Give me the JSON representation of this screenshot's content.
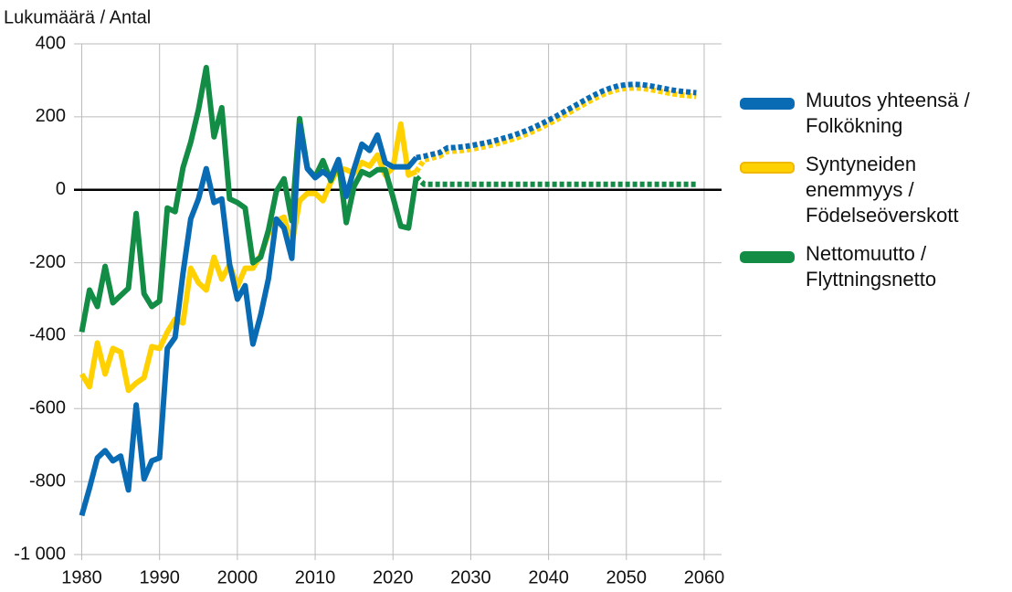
{
  "chart_data": {
    "type": "line",
    "title": "Lukumäärä / Antal",
    "x": [
      1980,
      1981,
      1982,
      1983,
      1984,
      1985,
      1986,
      1987,
      1988,
      1989,
      1990,
      1991,
      1992,
      1993,
      1994,
      1995,
      1996,
      1997,
      1998,
      1999,
      2000,
      2001,
      2002,
      2003,
      2004,
      2005,
      2006,
      2007,
      2008,
      2009,
      2010,
      2011,
      2012,
      2013,
      2014,
      2015,
      2016,
      2017,
      2018,
      2019,
      2020,
      2021,
      2022,
      2023,
      2024,
      2025,
      2026,
      2027,
      2028,
      2029,
      2030,
      2031,
      2032,
      2033,
      2034,
      2035,
      2036,
      2037,
      2038,
      2039,
      2040,
      2041,
      2042,
      2043,
      2044,
      2045,
      2046,
      2047,
      2048,
      2049,
      2050,
      2051,
      2052,
      2053,
      2054,
      2055,
      2056,
      2057,
      2058,
      2059
    ],
    "dashed_from": 2023,
    "series": [
      {
        "name": "Syntyneiden enemmyys / Födelseöverskott",
        "color": "#ffd100",
        "values": [
          -505,
          -540,
          -420,
          -505,
          -435,
          -445,
          -550,
          -530,
          -515,
          -430,
          -435,
          -390,
          -355,
          -365,
          -215,
          -255,
          -275,
          -185,
          -245,
          -205,
          -265,
          -215,
          -215,
          -180,
          -120,
          -85,
          -75,
          -150,
          -30,
          -10,
          -10,
          -30,
          20,
          60,
          55,
          45,
          75,
          65,
          95,
          40,
          60,
          180,
          40,
          50,
          82,
          87,
          92,
          105,
          106,
          108,
          111,
          115,
          119,
          124,
          130,
          136,
          143,
          151,
          160,
          170,
          181,
          192,
          204,
          216,
          228,
          240,
          251,
          261,
          269,
          275,
          278,
          279,
          278,
          275,
          271,
          267,
          263,
          260,
          258,
          256
        ]
      },
      {
        "name": "Nettomuutto / Flyttningsnetto",
        "color": "#138c45",
        "values": [
          -390,
          -275,
          -320,
          -210,
          -310,
          -290,
          -270,
          -65,
          -285,
          -320,
          -305,
          -50,
          -60,
          60,
          130,
          220,
          335,
          145,
          225,
          -25,
          -35,
          -50,
          -200,
          -185,
          -110,
          -5,
          30,
          -85,
          195,
          60,
          35,
          80,
          25,
          80,
          -90,
          10,
          50,
          40,
          55,
          55,
          -20,
          -100,
          -105,
          35,
          15,
          15,
          15,
          15,
          15,
          15,
          15,
          15,
          15,
          15,
          15,
          15,
          15,
          15,
          15,
          15,
          15,
          15,
          15,
          15,
          15,
          15,
          15,
          15,
          15,
          15,
          15,
          15,
          15,
          15,
          15,
          15,
          15,
          15,
          15,
          15
        ]
      },
      {
        "name": "Muutos yhteensä / Folkökning",
        "color": "#0a6bb5",
        "values": [
          -893,
          -818,
          -735,
          -715,
          -743,
          -730,
          -823,
          -590,
          -793,
          -743,
          -735,
          -435,
          -405,
          -230,
          -80,
          -25,
          58,
          -35,
          -25,
          -205,
          -300,
          -263,
          -423,
          -343,
          -243,
          -80,
          -105,
          -188,
          175,
          58,
          33,
          50,
          33,
          83,
          -18,
          58,
          125,
          108,
          150,
          75,
          63,
          63,
          63,
          88,
          92,
          97,
          102,
          115,
          116,
          118,
          121,
          125,
          129,
          134,
          140,
          146,
          153,
          161,
          170,
          180,
          191,
          202,
          214,
          226,
          238,
          250,
          261,
          271,
          279,
          285,
          288,
          289,
          288,
          285,
          281,
          277,
          273,
          270,
          268,
          266
        ]
      }
    ],
    "legend_order": [
      2,
      0,
      1
    ],
    "xlim": [
      1979,
      2062
    ],
    "xticks": [
      1980,
      1990,
      2000,
      2010,
      2020,
      2030,
      2040,
      2050,
      2060
    ],
    "ylim": [
      -1000,
      400
    ],
    "yticks": [
      {
        "value": -1000,
        "label": "-1 000"
      },
      -800,
      -600,
      -400,
      -200,
      0,
      200,
      400
    ],
    "grid": true
  }
}
